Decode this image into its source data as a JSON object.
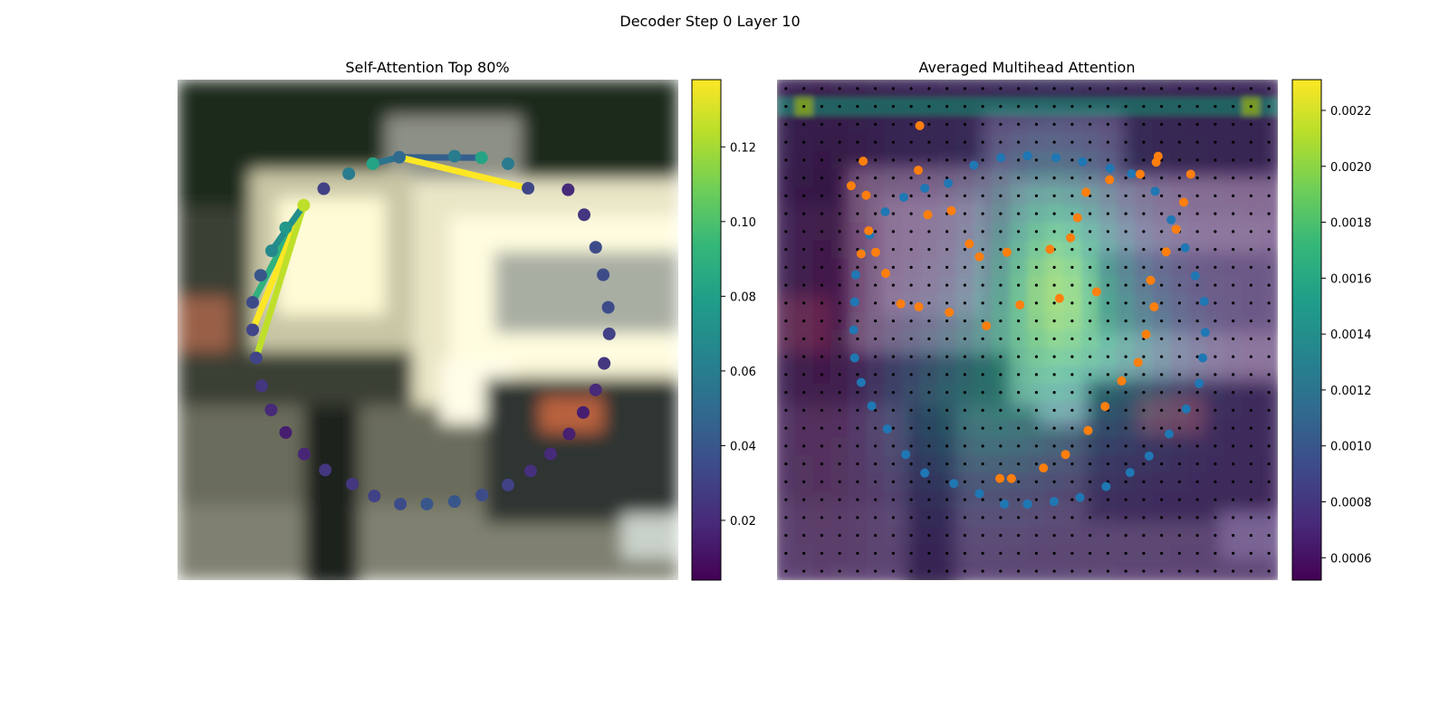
{
  "suptitle": "Decoder Step 0 Layer 10",
  "colors": {
    "viridis": [
      "#440154",
      "#482878",
      "#3e4989",
      "#31688e",
      "#26828e",
      "#1f9e89",
      "#35b779",
      "#6ece58",
      "#b5de2b",
      "#fde725"
    ],
    "point_blue": "#1f77b4",
    "point_orange": "#ff7f0e",
    "grid_dot": "#000000"
  },
  "chart_data": [
    {
      "type": "scatter",
      "title": "Self-Attention Top 80%",
      "background": "blurred street photo (vehicle, pedestrian)",
      "xlim": [
        0,
        1
      ],
      "ylim": [
        0,
        1
      ],
      "colorbar": {
        "min": 0.004,
        "max": 0.138,
        "ticks": [
          "0.02",
          "0.04",
          "0.06",
          "0.08",
          "0.10",
          "0.12"
        ],
        "tick_values": [
          0.02,
          0.04,
          0.06,
          0.08,
          0.1,
          0.12
        ]
      },
      "polygon_points": [
        [
          0.498,
          0.848,
          0.04
        ],
        [
          0.553,
          0.843,
          0.04
        ],
        [
          0.608,
          0.83,
          0.035
        ],
        [
          0.66,
          0.81,
          0.03
        ],
        [
          0.705,
          0.782,
          0.022
        ],
        [
          0.745,
          0.748,
          0.02
        ],
        [
          0.782,
          0.708,
          0.016
        ],
        [
          0.81,
          0.665,
          0.015
        ],
        [
          0.835,
          0.62,
          0.02
        ],
        [
          0.852,
          0.567,
          0.025
        ],
        [
          0.862,
          0.508,
          0.03
        ],
        [
          0.86,
          0.455,
          0.035
        ],
        [
          0.85,
          0.39,
          0.035
        ],
        [
          0.835,
          0.335,
          0.035
        ],
        [
          0.812,
          0.27,
          0.025
        ],
        [
          0.78,
          0.22,
          0.02
        ],
        [
          0.7,
          0.217,
          0.033
        ],
        [
          0.66,
          0.168,
          0.06
        ],
        [
          0.607,
          0.156,
          0.082
        ],
        [
          0.553,
          0.153,
          0.06
        ],
        [
          0.443,
          0.155,
          0.05
        ],
        [
          0.39,
          0.168,
          0.082
        ],
        [
          0.342,
          0.188,
          0.06
        ],
        [
          0.292,
          0.218,
          0.03
        ],
        [
          0.252,
          0.251,
          0.125
        ],
        [
          0.216,
          0.296,
          0.075
        ],
        [
          0.188,
          0.342,
          0.067
        ],
        [
          0.166,
          0.391,
          0.04
        ],
        [
          0.15,
          0.445,
          0.035
        ],
        [
          0.15,
          0.5,
          0.032
        ],
        [
          0.157,
          0.556,
          0.032
        ],
        [
          0.168,
          0.612,
          0.025
        ],
        [
          0.187,
          0.66,
          0.02
        ],
        [
          0.216,
          0.705,
          0.015
        ],
        [
          0.253,
          0.748,
          0.018
        ],
        [
          0.295,
          0.78,
          0.025
        ],
        [
          0.349,
          0.808,
          0.025
        ],
        [
          0.393,
          0.832,
          0.03
        ],
        [
          0.445,
          0.848,
          0.035
        ]
      ],
      "attention_links": [
        [
          0.15,
          0.445,
          0.252,
          0.251,
          0.09
        ],
        [
          0.15,
          0.5,
          0.252,
          0.251,
          0.138
        ],
        [
          0.157,
          0.556,
          0.252,
          0.251,
          0.125
        ],
        [
          0.188,
          0.342,
          0.252,
          0.251,
          0.07
        ],
        [
          0.39,
          0.168,
          0.443,
          0.155,
          0.055
        ],
        [
          0.443,
          0.155,
          0.607,
          0.156,
          0.045
        ],
        [
          0.443,
          0.155,
          0.7,
          0.217,
          0.138
        ]
      ]
    },
    {
      "type": "heatmap",
      "title": "Averaged Multihead Attention",
      "background": "blurred street photo (vehicle, pedestrian)",
      "grid": "28x28 attention cells with a black dot at each cell center",
      "colorbar": {
        "min": 0.00052,
        "max": 0.00231,
        "ticks": [
          "0.0006",
          "0.0008",
          "0.0010",
          "0.0012",
          "0.0014",
          "0.0016",
          "0.0018",
          "0.0020",
          "0.0022"
        ],
        "tick_values": [
          0.0006,
          0.0008,
          0.001,
          0.0012,
          0.0014,
          0.0016,
          0.0018,
          0.002,
          0.0022
        ]
      },
      "series": [
        {
          "color": "blue",
          "points": [
            [
              0.5,
              0.848
            ],
            [
              0.553,
              0.843
            ],
            [
              0.605,
              0.835
            ],
            [
              0.657,
              0.813
            ],
            [
              0.705,
              0.785
            ],
            [
              0.743,
              0.752
            ],
            [
              0.783,
              0.708
            ],
            [
              0.817,
              0.658
            ],
            [
              0.843,
              0.607
            ],
            [
              0.85,
              0.556
            ],
            [
              0.855,
              0.505
            ],
            [
              0.853,
              0.443
            ],
            [
              0.835,
              0.392
            ],
            [
              0.815,
              0.336
            ],
            [
              0.787,
              0.28
            ],
            [
              0.755,
              0.223
            ],
            [
              0.708,
              0.188
            ],
            [
              0.665,
              0.177
            ],
            [
              0.61,
              0.164
            ],
            [
              0.557,
              0.156
            ],
            [
              0.5,
              0.152
            ],
            [
              0.447,
              0.156
            ],
            [
              0.393,
              0.171
            ],
            [
              0.342,
              0.207
            ],
            [
              0.295,
              0.217
            ],
            [
              0.253,
              0.235
            ],
            [
              0.216,
              0.264
            ],
            [
              0.185,
              0.31
            ],
            [
              0.169,
              0.347
            ],
            [
              0.157,
              0.39
            ],
            [
              0.155,
              0.444
            ],
            [
              0.153,
              0.5
            ],
            [
              0.155,
              0.556
            ],
            [
              0.168,
              0.605
            ],
            [
              0.189,
              0.652
            ],
            [
              0.22,
              0.698
            ],
            [
              0.257,
              0.749
            ],
            [
              0.295,
              0.786
            ],
            [
              0.353,
              0.807
            ],
            [
              0.404,
              0.827
            ],
            [
              0.454,
              0.848
            ],
            [
              0.5,
              0.848
            ]
          ]
        },
        {
          "color": "orange",
          "points": [
            [
              0.468,
              0.797
            ],
            [
              0.445,
              0.797
            ],
            [
              0.532,
              0.776
            ],
            [
              0.576,
              0.749
            ],
            [
              0.621,
              0.701
            ],
            [
              0.655,
              0.653
            ],
            [
              0.688,
              0.602
            ],
            [
              0.721,
              0.565
            ],
            [
              0.737,
              0.509
            ],
            [
              0.753,
              0.454
            ],
            [
              0.746,
              0.401
            ],
            [
              0.777,
              0.344
            ],
            [
              0.797,
              0.299
            ],
            [
              0.812,
              0.245
            ],
            [
              0.826,
              0.189
            ],
            [
              0.761,
              0.153
            ],
            [
              0.757,
              0.165
            ],
            [
              0.725,
              0.189
            ],
            [
              0.664,
              0.2
            ],
            [
              0.617,
              0.225
            ],
            [
              0.6,
              0.276
            ],
            [
              0.586,
              0.316
            ],
            [
              0.545,
              0.339
            ],
            [
              0.459,
              0.345
            ],
            [
              0.404,
              0.354
            ],
            [
              0.384,
              0.328
            ],
            [
              0.348,
              0.262
            ],
            [
              0.301,
              0.27
            ],
            [
              0.282,
              0.181
            ],
            [
              0.285,
              0.092
            ],
            [
              0.172,
              0.163
            ],
            [
              0.148,
              0.212
            ],
            [
              0.178,
              0.231
            ],
            [
              0.183,
              0.302
            ],
            [
              0.168,
              0.348
            ],
            [
              0.197,
              0.345
            ],
            [
              0.217,
              0.387
            ],
            [
              0.247,
              0.448
            ],
            [
              0.283,
              0.454
            ],
            [
              0.344,
              0.465
            ],
            [
              0.418,
              0.492
            ],
            [
              0.485,
              0.45
            ],
            [
              0.564,
              0.437
            ],
            [
              0.638,
              0.424
            ]
          ]
        }
      ]
    }
  ]
}
